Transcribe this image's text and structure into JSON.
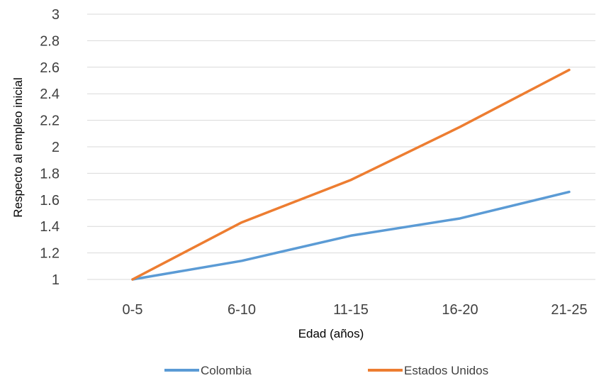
{
  "chart_data": {
    "type": "line",
    "title": "",
    "xlabel": "Edad (años)",
    "ylabel": "Respecto al empleo inicial",
    "categories": [
      "0-5",
      "6-10",
      "11-15",
      "16-20",
      "21-25"
    ],
    "ylim": [
      1,
      3
    ],
    "yticks": [
      "1",
      "1.2",
      "1.4",
      "1.6",
      "1.8",
      "2",
      "2.2",
      "2.4",
      "2.6",
      "2.8",
      "3"
    ],
    "grid": true,
    "legend_position": "bottom",
    "series": [
      {
        "name": "Colombia",
        "color": "#5b9bd5",
        "values": [
          1.0,
          1.14,
          1.33,
          1.46,
          1.66
        ]
      },
      {
        "name": "Estados Unidos",
        "color": "#ed7d31",
        "values": [
          1.0,
          1.43,
          1.75,
          2.15,
          2.58
        ]
      }
    ]
  }
}
